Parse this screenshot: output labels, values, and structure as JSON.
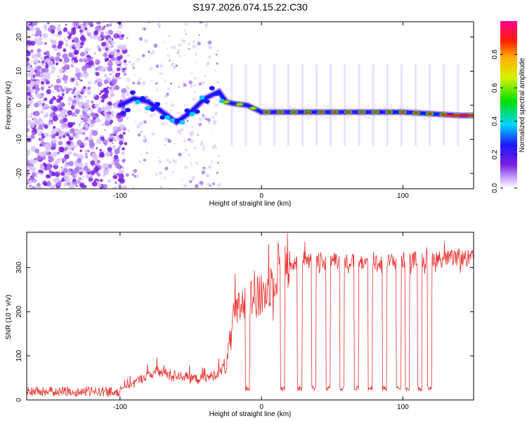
{
  "title": "S197.2026.074.15.22.C30",
  "chart_data": [
    {
      "type": "heatmap",
      "title": "S197.2026.074.15.22.C30",
      "xlabel": "Height of straight line (km)",
      "ylabel": "Frequency (Hz)",
      "xlim": [
        -166,
        150
      ],
      "ylim": [
        -24.5,
        24.5
      ],
      "xticks": [
        -100,
        0,
        100
      ],
      "yticks": [
        -20,
        -10,
        0,
        10,
        20
      ],
      "xtick_labels": [
        "-100",
        "0",
        "100"
      ],
      "ytick_labels": [
        "-20",
        "-10",
        "0",
        "10",
        "20"
      ],
      "ridge_frequency_hz": {
        "x": [
          -100,
          -90,
          -80,
          -70,
          -60,
          -50,
          -40,
          -30,
          -25,
          -20,
          -10,
          0,
          20,
          40,
          60,
          80,
          100,
          120,
          140,
          150
        ],
        "y": [
          0,
          2,
          1,
          -2,
          -5,
          -2,
          2,
          4,
          1,
          0.5,
          0,
          -2,
          -2,
          -2,
          -2,
          -2,
          -2,
          -2.5,
          -3,
          -3
        ]
      },
      "colorbar": {
        "label": "Normalized spectral amplitude",
        "range": [
          0.0,
          1.0
        ],
        "ticks": [
          0.0,
          0.2,
          0.4,
          0.6,
          0.8
        ],
        "tick_labels": [
          "0.0",
          "0.2",
          "0.4",
          "0.6",
          "0.8"
        ]
      }
    },
    {
      "type": "line",
      "xlabel": "Height of straight line (km)",
      "ylabel": "SNR (10 * v/v)",
      "xlim": [
        -166,
        150
      ],
      "ylim": [
        0,
        380
      ],
      "xticks": [
        -100,
        0,
        100
      ],
      "yticks": [
        0,
        100,
        200,
        300
      ],
      "xtick_labels": [
        "-100",
        "0",
        "100"
      ],
      "ytick_labels": [
        "0",
        "100",
        "200",
        "300"
      ],
      "color": "#e8302e",
      "series": [
        {
          "name": "SNR",
          "envelope": {
            "x": [
              -166,
              -110,
              -95,
              -85,
              -75,
              -65,
              -55,
              -45,
              -35,
              -25,
              -20,
              -15,
              -10,
              -5,
              0,
              5,
              10,
              15,
              20,
              30,
              50,
              80,
              100,
              120,
              150
            ],
            "y": [
              15,
              15,
              30,
              45,
              60,
              55,
              50,
              45,
              50,
              70,
              170,
              200,
              210,
              220,
              215,
              240,
              270,
              300,
              300,
              315,
              310,
              305,
              310,
              315,
              315
            ]
          },
          "dropouts_x": [
            -10,
            15,
            27,
            37,
            47,
            57,
            67,
            77,
            87,
            97,
            103,
            112,
            119
          ],
          "dropout_level": 20
        }
      ]
    }
  ]
}
